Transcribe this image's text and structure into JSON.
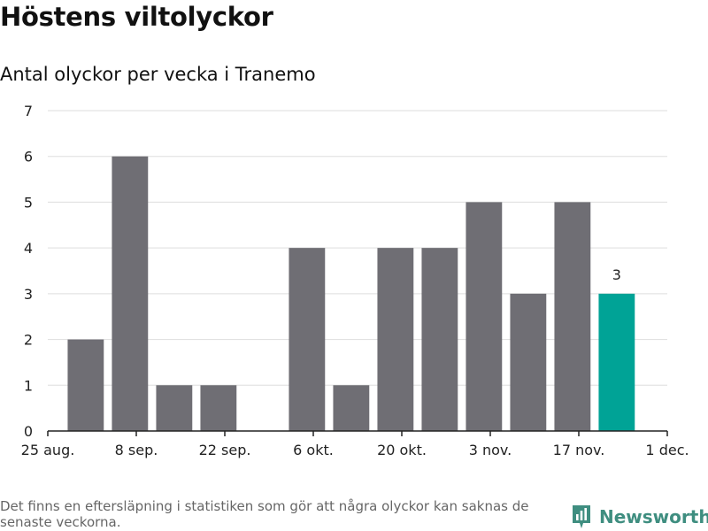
{
  "header": {
    "title": "Höstens viltolyckor",
    "subtitle": "Antal olyckor per vecka i Tranemo"
  },
  "footer": {
    "note": "Det finns en eftersläpning i statistiken som gör att några olyckor kan saknas de senaste veckorna.",
    "brand": "Newsworthy"
  },
  "colors": {
    "bar": "#6f6e74",
    "highlight": "#00a396",
    "grid": "#dddddd",
    "axis": "#222222",
    "brand": "#3f8e80"
  },
  "chart_data": {
    "type": "bar",
    "title": "Höstens viltolyckor",
    "subtitle": "Antal olyckor per vecka i Tranemo",
    "xlabel": "",
    "ylabel": "",
    "ylim": [
      0,
      7
    ],
    "yticks": [
      "0",
      "1",
      "2",
      "3",
      "4",
      "5",
      "6",
      "7"
    ],
    "grid": true,
    "xticks": [
      "25 aug.",
      "8 sep.",
      "22 sep.",
      "6 okt.",
      "20 okt.",
      "3 nov.",
      "17 nov.",
      "1 dec."
    ],
    "categories": [
      "2020-08-31",
      "2020-09-07",
      "2020-09-14",
      "2020-09-21",
      "2020-09-28",
      "2020-10-05",
      "2020-10-12",
      "2020-10-19",
      "2020-10-26",
      "2020-11-02",
      "2020-11-09",
      "2020-11-16",
      "2020-11-23"
    ],
    "values": [
      2,
      6,
      1,
      1,
      0,
      4,
      1,
      4,
      4,
      5,
      3,
      5,
      3
    ],
    "highlight_index": 12,
    "data_labels": [
      {
        "index": 12,
        "text": "3"
      }
    ]
  }
}
